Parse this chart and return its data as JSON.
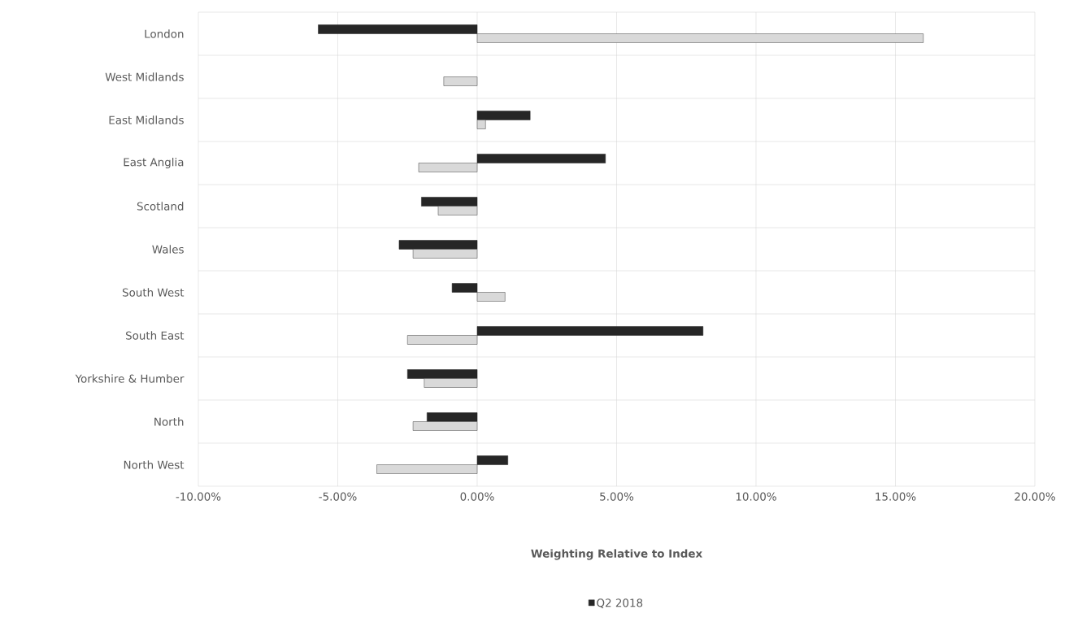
{
  "chart_data": {
    "type": "bar",
    "orientation": "horizontal",
    "xlabel": "Weighting Relative to Index",
    "categories": [
      "London",
      "West Midlands",
      "East Midlands",
      "East Anglia",
      "Scotland",
      "Wales",
      "South West",
      "South East",
      "Yorkshire & Humber",
      "North",
      "North West"
    ],
    "series": [
      {
        "name": "Q2 2018",
        "color": "#262626",
        "values": [
          -5.7,
          null,
          1.9,
          4.6,
          -2.0,
          -2.8,
          -0.9,
          8.1,
          -2.5,
          -1.8,
          1.1
        ]
      },
      {
        "color": "#d9d9d9",
        "values": [
          16.0,
          -1.2,
          0.3,
          -2.1,
          -1.4,
          -2.3,
          1.0,
          -2.5,
          -1.9,
          -2.3,
          -3.6
        ]
      }
    ],
    "xlim": [
      -10,
      20
    ],
    "xticks": [
      {
        "value": -10,
        "label": "-10.00%"
      },
      {
        "value": -5,
        "label": "-5.00%"
      },
      {
        "value": 0,
        "label": "0.00%"
      },
      {
        "value": 5,
        "label": "5.00%"
      },
      {
        "value": 10,
        "label": "10.00%"
      },
      {
        "value": 15,
        "label": "15.00%"
      },
      {
        "value": 20,
        "label": "20.00%"
      }
    ],
    "grid": true,
    "legend": "bottom"
  }
}
